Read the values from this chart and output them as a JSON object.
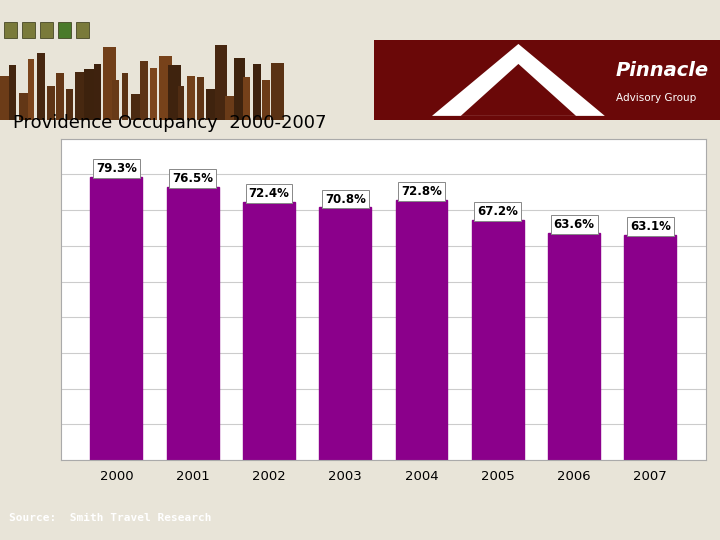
{
  "years": [
    "2000",
    "2001",
    "2002",
    "2003",
    "2004",
    "2005",
    "2006",
    "2007"
  ],
  "values": [
    79.3,
    76.5,
    72.4,
    70.8,
    72.8,
    67.2,
    63.6,
    63.1
  ],
  "bar_color": "#8B008B",
  "title": "Providence Occupancy  2000-2007",
  "title_fontsize": 13,
  "title_color": "#000000",
  "bar_label_fontsize": 8.5,
  "ylim_min": 0,
  "ylim_max": 90,
  "header_top_color": "#7a7a3a",
  "header_bottom_color": "#7a1010",
  "footer_color_top": "#cc7722",
  "footer_color_bottom": "#5a2060",
  "source_text": "Source:  Smith Travel Research",
  "source_fontsize": 8,
  "chart_bg": "#ffffff",
  "outer_bg": "#e8e4d8",
  "grid_color": "#cccccc",
  "axis_border_color": "#aaaaaa",
  "sq_colors": [
    "#7a7a3a",
    "#7a7a3a",
    "#7a7a3a",
    "#4a7a2a",
    "#7a7a3a"
  ]
}
